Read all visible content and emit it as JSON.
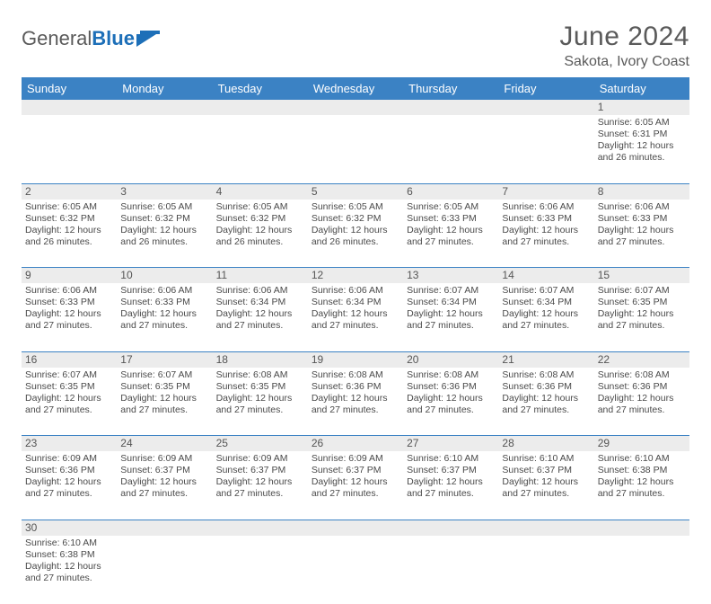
{
  "brand": {
    "part1": "General",
    "part2": "Blue"
  },
  "title": "June 2024",
  "location": "Sakota, Ivory Coast",
  "colors": {
    "header_bg": "#3b82c4",
    "header_text": "#ffffff",
    "daynum_bg": "#ececec",
    "row_border": "#3b82c4",
    "text": "#4a4a4a",
    "brand_gray": "#5a5a5a",
    "brand_blue": "#1d6fb8"
  },
  "day_headers": [
    "Sunday",
    "Monday",
    "Tuesday",
    "Wednesday",
    "Thursday",
    "Friday",
    "Saturday"
  ],
  "weeks": [
    [
      null,
      null,
      null,
      null,
      null,
      null,
      {
        "n": "1",
        "sr": "Sunrise: 6:05 AM",
        "ss": "Sunset: 6:31 PM",
        "d1": "Daylight: 12 hours",
        "d2": "and 26 minutes."
      }
    ],
    [
      {
        "n": "2",
        "sr": "Sunrise: 6:05 AM",
        "ss": "Sunset: 6:32 PM",
        "d1": "Daylight: 12 hours",
        "d2": "and 26 minutes."
      },
      {
        "n": "3",
        "sr": "Sunrise: 6:05 AM",
        "ss": "Sunset: 6:32 PM",
        "d1": "Daylight: 12 hours",
        "d2": "and 26 minutes."
      },
      {
        "n": "4",
        "sr": "Sunrise: 6:05 AM",
        "ss": "Sunset: 6:32 PM",
        "d1": "Daylight: 12 hours",
        "d2": "and 26 minutes."
      },
      {
        "n": "5",
        "sr": "Sunrise: 6:05 AM",
        "ss": "Sunset: 6:32 PM",
        "d1": "Daylight: 12 hours",
        "d2": "and 26 minutes."
      },
      {
        "n": "6",
        "sr": "Sunrise: 6:05 AM",
        "ss": "Sunset: 6:33 PM",
        "d1": "Daylight: 12 hours",
        "d2": "and 27 minutes."
      },
      {
        "n": "7",
        "sr": "Sunrise: 6:06 AM",
        "ss": "Sunset: 6:33 PM",
        "d1": "Daylight: 12 hours",
        "d2": "and 27 minutes."
      },
      {
        "n": "8",
        "sr": "Sunrise: 6:06 AM",
        "ss": "Sunset: 6:33 PM",
        "d1": "Daylight: 12 hours",
        "d2": "and 27 minutes."
      }
    ],
    [
      {
        "n": "9",
        "sr": "Sunrise: 6:06 AM",
        "ss": "Sunset: 6:33 PM",
        "d1": "Daylight: 12 hours",
        "d2": "and 27 minutes."
      },
      {
        "n": "10",
        "sr": "Sunrise: 6:06 AM",
        "ss": "Sunset: 6:33 PM",
        "d1": "Daylight: 12 hours",
        "d2": "and 27 minutes."
      },
      {
        "n": "11",
        "sr": "Sunrise: 6:06 AM",
        "ss": "Sunset: 6:34 PM",
        "d1": "Daylight: 12 hours",
        "d2": "and 27 minutes."
      },
      {
        "n": "12",
        "sr": "Sunrise: 6:06 AM",
        "ss": "Sunset: 6:34 PM",
        "d1": "Daylight: 12 hours",
        "d2": "and 27 minutes."
      },
      {
        "n": "13",
        "sr": "Sunrise: 6:07 AM",
        "ss": "Sunset: 6:34 PM",
        "d1": "Daylight: 12 hours",
        "d2": "and 27 minutes."
      },
      {
        "n": "14",
        "sr": "Sunrise: 6:07 AM",
        "ss": "Sunset: 6:34 PM",
        "d1": "Daylight: 12 hours",
        "d2": "and 27 minutes."
      },
      {
        "n": "15",
        "sr": "Sunrise: 6:07 AM",
        "ss": "Sunset: 6:35 PM",
        "d1": "Daylight: 12 hours",
        "d2": "and 27 minutes."
      }
    ],
    [
      {
        "n": "16",
        "sr": "Sunrise: 6:07 AM",
        "ss": "Sunset: 6:35 PM",
        "d1": "Daylight: 12 hours",
        "d2": "and 27 minutes."
      },
      {
        "n": "17",
        "sr": "Sunrise: 6:07 AM",
        "ss": "Sunset: 6:35 PM",
        "d1": "Daylight: 12 hours",
        "d2": "and 27 minutes."
      },
      {
        "n": "18",
        "sr": "Sunrise: 6:08 AM",
        "ss": "Sunset: 6:35 PM",
        "d1": "Daylight: 12 hours",
        "d2": "and 27 minutes."
      },
      {
        "n": "19",
        "sr": "Sunrise: 6:08 AM",
        "ss": "Sunset: 6:36 PM",
        "d1": "Daylight: 12 hours",
        "d2": "and 27 minutes."
      },
      {
        "n": "20",
        "sr": "Sunrise: 6:08 AM",
        "ss": "Sunset: 6:36 PM",
        "d1": "Daylight: 12 hours",
        "d2": "and 27 minutes."
      },
      {
        "n": "21",
        "sr": "Sunrise: 6:08 AM",
        "ss": "Sunset: 6:36 PM",
        "d1": "Daylight: 12 hours",
        "d2": "and 27 minutes."
      },
      {
        "n": "22",
        "sr": "Sunrise: 6:08 AM",
        "ss": "Sunset: 6:36 PM",
        "d1": "Daylight: 12 hours",
        "d2": "and 27 minutes."
      }
    ],
    [
      {
        "n": "23",
        "sr": "Sunrise: 6:09 AM",
        "ss": "Sunset: 6:36 PM",
        "d1": "Daylight: 12 hours",
        "d2": "and 27 minutes."
      },
      {
        "n": "24",
        "sr": "Sunrise: 6:09 AM",
        "ss": "Sunset: 6:37 PM",
        "d1": "Daylight: 12 hours",
        "d2": "and 27 minutes."
      },
      {
        "n": "25",
        "sr": "Sunrise: 6:09 AM",
        "ss": "Sunset: 6:37 PM",
        "d1": "Daylight: 12 hours",
        "d2": "and 27 minutes."
      },
      {
        "n": "26",
        "sr": "Sunrise: 6:09 AM",
        "ss": "Sunset: 6:37 PM",
        "d1": "Daylight: 12 hours",
        "d2": "and 27 minutes."
      },
      {
        "n": "27",
        "sr": "Sunrise: 6:10 AM",
        "ss": "Sunset: 6:37 PM",
        "d1": "Daylight: 12 hours",
        "d2": "and 27 minutes."
      },
      {
        "n": "28",
        "sr": "Sunrise: 6:10 AM",
        "ss": "Sunset: 6:37 PM",
        "d1": "Daylight: 12 hours",
        "d2": "and 27 minutes."
      },
      {
        "n": "29",
        "sr": "Sunrise: 6:10 AM",
        "ss": "Sunset: 6:38 PM",
        "d1": "Daylight: 12 hours",
        "d2": "and 27 minutes."
      }
    ],
    [
      {
        "n": "30",
        "sr": "Sunrise: 6:10 AM",
        "ss": "Sunset: 6:38 PM",
        "d1": "Daylight: 12 hours",
        "d2": "and 27 minutes."
      },
      null,
      null,
      null,
      null,
      null,
      null
    ]
  ]
}
